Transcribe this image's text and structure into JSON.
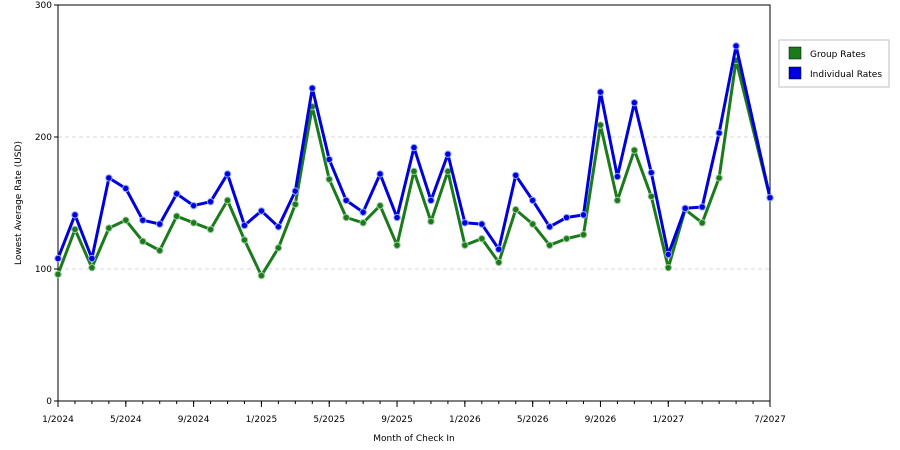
{
  "chart_data": {
    "type": "line",
    "title": "",
    "xlabel": "Month of Check In",
    "ylabel": "Lowest Average Rate (USD)",
    "ylim": [
      0,
      300
    ],
    "yticks": [
      0,
      100,
      200,
      300
    ],
    "x_tick_labels": [
      "1/2024",
      "5/2024",
      "9/2024",
      "1/2025",
      "5/2025",
      "9/2025",
      "1/2026",
      "5/2026",
      "9/2026",
      "1/2027",
      "7/2027"
    ],
    "x": [
      "1/2024",
      "2/2024",
      "3/2024",
      "4/2024",
      "5/2024",
      "6/2024",
      "7/2024",
      "8/2024",
      "9/2024",
      "10/2024",
      "11/2024",
      "12/2024",
      "1/2025",
      "2/2025",
      "3/2025",
      "4/2025",
      "5/2025",
      "6/2025",
      "7/2025",
      "8/2025",
      "9/2025",
      "10/2025",
      "11/2025",
      "12/2025",
      "1/2026",
      "2/2026",
      "3/2026",
      "4/2026",
      "5/2026",
      "6/2026",
      "7/2026",
      "8/2026",
      "9/2026",
      "10/2026",
      "11/2026",
      "12/2026",
      "1/2027",
      "2/2027",
      "3/2027",
      "4/2027",
      "5/2027",
      "6/2027",
      "7/2027"
    ],
    "grid": "horizontal dashed",
    "legend_position": "right",
    "series": [
      {
        "name": "Group Rates",
        "color": "#1b7a1b",
        "values": [
          96,
          130,
          101,
          131,
          137,
          121,
          114,
          140,
          135,
          130,
          152,
          122,
          95,
          116,
          149,
          223,
          168,
          139,
          135,
          148,
          118,
          174,
          136,
          174,
          118,
          123,
          105,
          145,
          134,
          118,
          123,
          126,
          209,
          152,
          190,
          155,
          101,
          145,
          135,
          169,
          258,
          null,
          154
        ]
      },
      {
        "name": "Individual Rates",
        "color": "#0000dd",
        "values": [
          108,
          141,
          108,
          169,
          161,
          137,
          134,
          157,
          148,
          151,
          172,
          133,
          144,
          132,
          159,
          237,
          183,
          152,
          143,
          172,
          139,
          192,
          152,
          187,
          135,
          134,
          115,
          171,
          152,
          132,
          139,
          141,
          234,
          170,
          226,
          173,
          111,
          146,
          147,
          203,
          269,
          null,
          154
        ]
      }
    ]
  }
}
